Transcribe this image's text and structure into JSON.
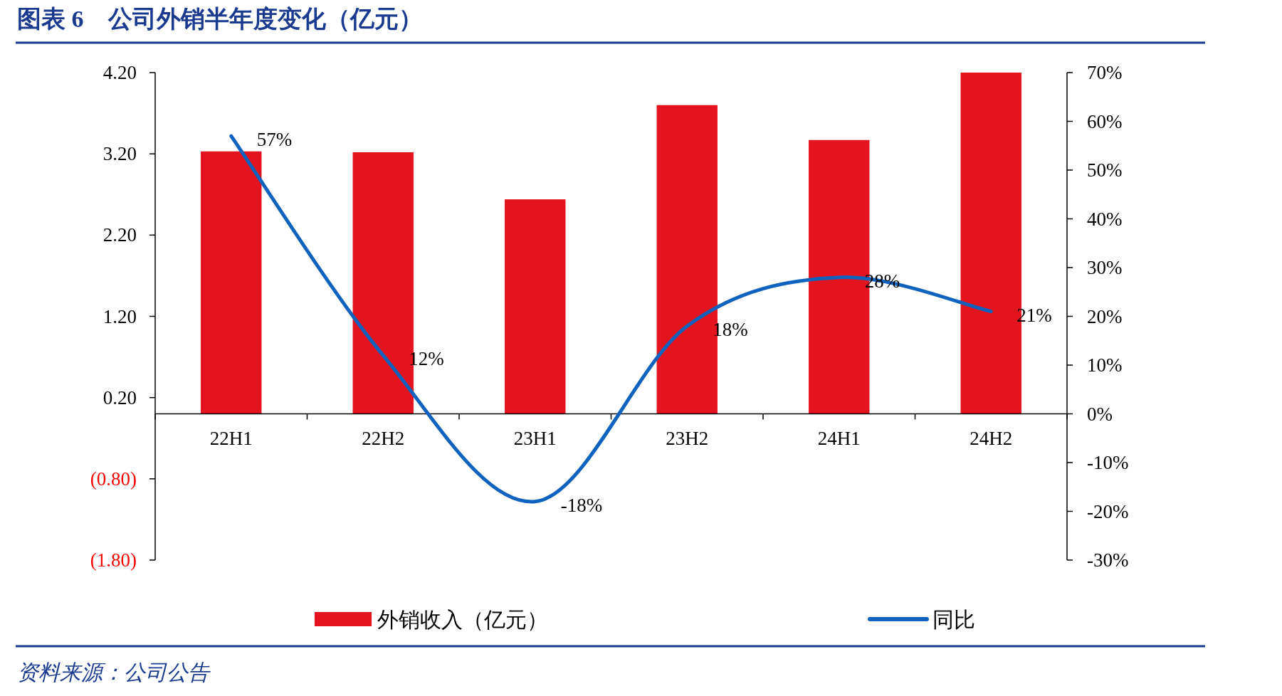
{
  "chart_data": {
    "type": "bar",
    "title": "图表 6　公司外销半年度变化（亿元）",
    "annotations": [
      "资料来源：公司公告"
    ],
    "categories": [
      "22H1",
      "22H2",
      "23H1",
      "23H2",
      "24H1",
      "24H2"
    ],
    "series": [
      {
        "name": "外销收入（亿元）",
        "color": "#e3141d",
        "values": [
          3.23,
          3.22,
          2.64,
          3.8,
          3.37,
          4.2
        ]
      },
      {
        "name": "同比",
        "type": "line",
        "axis": "y2",
        "color": "#0f62be",
        "values": [
          57,
          12,
          -18,
          18,
          28,
          21
        ],
        "value_labels": [
          "57%",
          "12%",
          "-18%",
          "18%",
          "28%",
          "21%"
        ]
      }
    ],
    "ylim": [
      -1.8,
      4.2
    ],
    "yticks": [
      {
        "value": 4.2,
        "label": "4.20"
      },
      {
        "value": 3.2,
        "label": "3.20"
      },
      {
        "value": 2.2,
        "label": "2.20"
      },
      {
        "value": 1.2,
        "label": "1.20"
      },
      {
        "value": 0.2,
        "label": "0.20"
      },
      {
        "value": -0.8,
        "label": "(0.80)"
      },
      {
        "value": -1.8,
        "label": "(1.80)"
      }
    ],
    "y2lim": [
      -30,
      70
    ],
    "y2ticks": [
      {
        "value": 70,
        "label": "70%"
      },
      {
        "value": 60,
        "label": "60%"
      },
      {
        "value": 50,
        "label": "50%"
      },
      {
        "value": 40,
        "label": "40%"
      },
      {
        "value": 30,
        "label": "30%"
      },
      {
        "value": 20,
        "label": "20%"
      },
      {
        "value": 10,
        "label": "10%"
      },
      {
        "value": 0,
        "label": "0%"
      },
      {
        "value": -10,
        "label": "-10%"
      },
      {
        "value": -20,
        "label": "-20%"
      },
      {
        "value": -30,
        "label": "-30%"
      }
    ],
    "grid": false,
    "legend": "bottom",
    "marker": "none"
  }
}
